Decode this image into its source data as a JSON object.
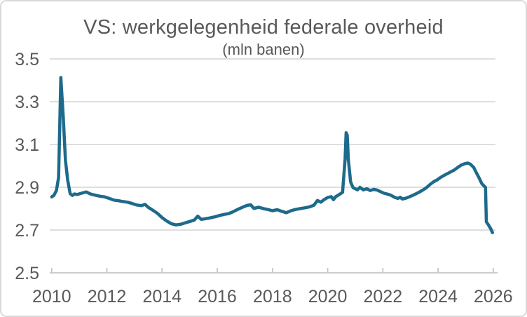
{
  "header": {
    "title": "VS: werkgelegenheid federale overheid",
    "subtitle": "(mln banen)"
  },
  "colors": {
    "line": "#1e6a8c",
    "grid": "#d9d9d9",
    "axis": "#c6c6c6",
    "text": "#595959",
    "background": "#ffffff",
    "border": "#d9d9d9"
  },
  "chart_data": {
    "type": "line",
    "title": "VS: werkgelegenheid federale overheid",
    "subtitle": "(mln banen)",
    "xlabel": "",
    "ylabel": "",
    "xlim": [
      2010,
      2026
    ],
    "ylim": [
      2.5,
      3.5
    ],
    "grid": "horizontal",
    "legend": "none",
    "x_ticks": [
      2010,
      2012,
      2014,
      2016,
      2018,
      2020,
      2022,
      2024,
      2026
    ],
    "x_tick_labels": [
      "2010",
      "2012",
      "2014",
      "2016",
      "2018",
      "2020",
      "2022",
      "2024",
      "2026"
    ],
    "y_ticks": [
      2.5,
      2.7,
      2.9,
      3.1,
      3.3,
      3.5
    ],
    "y_tick_labels": [
      "2.5",
      "2.7",
      "2.9",
      "3.1",
      "3.3",
      "3.5"
    ],
    "series": [
      {
        "name": "werkgelegenheid federale overheid (mln banen)",
        "points": [
          [
            2010.0,
            2.855
          ],
          [
            2010.08,
            2.862
          ],
          [
            2010.17,
            2.885
          ],
          [
            2010.25,
            2.945
          ],
          [
            2010.33,
            3.413
          ],
          [
            2010.42,
            3.225
          ],
          [
            2010.5,
            3.025
          ],
          [
            2010.58,
            2.933
          ],
          [
            2010.67,
            2.87
          ],
          [
            2010.75,
            2.862
          ],
          [
            2010.83,
            2.869
          ],
          [
            2010.92,
            2.866
          ],
          [
            2011.08,
            2.872
          ],
          [
            2011.25,
            2.878
          ],
          [
            2011.42,
            2.868
          ],
          [
            2011.58,
            2.863
          ],
          [
            2011.75,
            2.858
          ],
          [
            2011.92,
            2.855
          ],
          [
            2012.08,
            2.848
          ],
          [
            2012.25,
            2.84
          ],
          [
            2012.42,
            2.837
          ],
          [
            2012.58,
            2.833
          ],
          [
            2012.75,
            2.83
          ],
          [
            2012.92,
            2.824
          ],
          [
            2013.08,
            2.817
          ],
          [
            2013.25,
            2.814
          ],
          [
            2013.38,
            2.82
          ],
          [
            2013.5,
            2.806
          ],
          [
            2013.67,
            2.792
          ],
          [
            2013.83,
            2.778
          ],
          [
            2014.0,
            2.758
          ],
          [
            2014.17,
            2.742
          ],
          [
            2014.33,
            2.73
          ],
          [
            2014.5,
            2.724
          ],
          [
            2014.67,
            2.727
          ],
          [
            2014.83,
            2.733
          ],
          [
            2015.0,
            2.74
          ],
          [
            2015.17,
            2.747
          ],
          [
            2015.29,
            2.765
          ],
          [
            2015.42,
            2.75
          ],
          [
            2015.58,
            2.753
          ],
          [
            2015.75,
            2.757
          ],
          [
            2015.92,
            2.762
          ],
          [
            2016.08,
            2.768
          ],
          [
            2016.25,
            2.773
          ],
          [
            2016.42,
            2.777
          ],
          [
            2016.58,
            2.786
          ],
          [
            2016.75,
            2.797
          ],
          [
            2016.92,
            2.807
          ],
          [
            2017.08,
            2.815
          ],
          [
            2017.21,
            2.818
          ],
          [
            2017.33,
            2.801
          ],
          [
            2017.5,
            2.807
          ],
          [
            2017.67,
            2.8
          ],
          [
            2017.83,
            2.796
          ],
          [
            2018.0,
            2.79
          ],
          [
            2018.17,
            2.795
          ],
          [
            2018.33,
            2.788
          ],
          [
            2018.5,
            2.781
          ],
          [
            2018.67,
            2.79
          ],
          [
            2018.83,
            2.796
          ],
          [
            2019.0,
            2.8
          ],
          [
            2019.17,
            2.804
          ],
          [
            2019.33,
            2.808
          ],
          [
            2019.5,
            2.816
          ],
          [
            2019.63,
            2.838
          ],
          [
            2019.75,
            2.83
          ],
          [
            2019.88,
            2.843
          ],
          [
            2020.0,
            2.852
          ],
          [
            2020.13,
            2.856
          ],
          [
            2020.21,
            2.842
          ],
          [
            2020.29,
            2.856
          ],
          [
            2020.42,
            2.866
          ],
          [
            2020.54,
            2.876
          ],
          [
            2020.63,
            3.03
          ],
          [
            2020.67,
            3.155
          ],
          [
            2020.71,
            3.143
          ],
          [
            2020.75,
            3.028
          ],
          [
            2020.83,
            2.925
          ],
          [
            2020.92,
            2.898
          ],
          [
            2021.0,
            2.893
          ],
          [
            2021.08,
            2.888
          ],
          [
            2021.17,
            2.9
          ],
          [
            2021.29,
            2.888
          ],
          [
            2021.42,
            2.893
          ],
          [
            2021.54,
            2.885
          ],
          [
            2021.67,
            2.89
          ],
          [
            2021.79,
            2.887
          ],
          [
            2021.92,
            2.879
          ],
          [
            2022.04,
            2.872
          ],
          [
            2022.17,
            2.868
          ],
          [
            2022.29,
            2.863
          ],
          [
            2022.42,
            2.853
          ],
          [
            2022.54,
            2.848
          ],
          [
            2022.63,
            2.853
          ],
          [
            2022.71,
            2.845
          ],
          [
            2022.83,
            2.849
          ],
          [
            2022.96,
            2.855
          ],
          [
            2023.08,
            2.862
          ],
          [
            2023.21,
            2.87
          ],
          [
            2023.33,
            2.878
          ],
          [
            2023.46,
            2.888
          ],
          [
            2023.58,
            2.898
          ],
          [
            2023.71,
            2.913
          ],
          [
            2023.83,
            2.925
          ],
          [
            2023.96,
            2.934
          ],
          [
            2024.08,
            2.945
          ],
          [
            2024.21,
            2.955
          ],
          [
            2024.33,
            2.963
          ],
          [
            2024.46,
            2.972
          ],
          [
            2024.58,
            2.98
          ],
          [
            2024.71,
            2.992
          ],
          [
            2024.83,
            3.003
          ],
          [
            2024.96,
            3.01
          ],
          [
            2025.08,
            3.013
          ],
          [
            2025.17,
            3.008
          ],
          [
            2025.29,
            2.993
          ],
          [
            2025.38,
            2.97
          ],
          [
            2025.5,
            2.94
          ],
          [
            2025.58,
            2.918
          ],
          [
            2025.67,
            2.905
          ],
          [
            2025.72,
            2.9
          ],
          [
            2025.75,
            2.738
          ],
          [
            2025.83,
            2.723
          ],
          [
            2025.92,
            2.703
          ],
          [
            2025.97,
            2.688
          ]
        ]
      }
    ]
  }
}
